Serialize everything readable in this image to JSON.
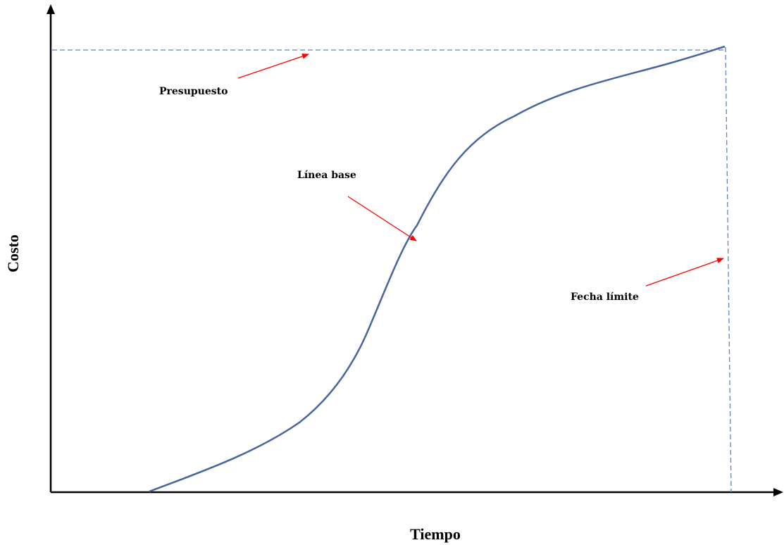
{
  "axes": {
    "x_label": "Tiempo",
    "y_label": "Costo"
  },
  "annotations": {
    "budget": "Presupuesto",
    "baseline": "Línea base",
    "deadline": "Fecha límite"
  },
  "colors": {
    "curve": "#4a64a0",
    "guide_line": "#5b86c5",
    "arrow": "#ff0000",
    "axis": "#000000"
  }
}
